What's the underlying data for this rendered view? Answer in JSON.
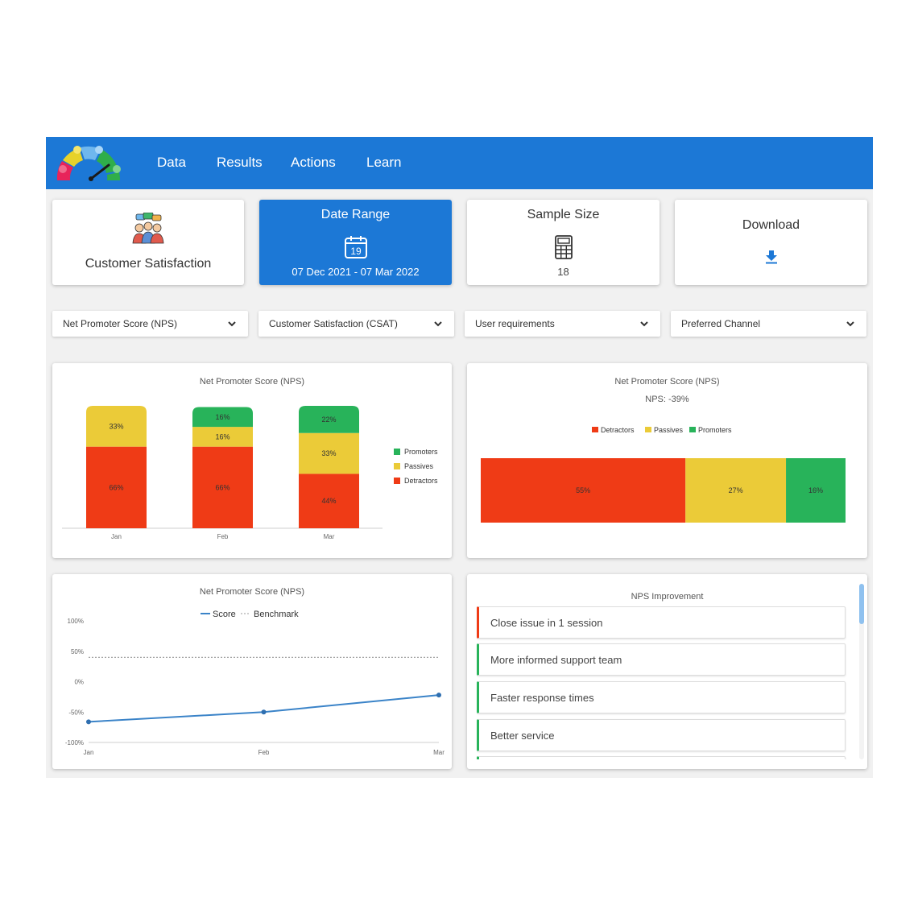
{
  "header": {
    "nav": [
      "Data",
      "Results",
      "Actions",
      "Learn"
    ],
    "colors": {
      "bar": "#1c78d6"
    }
  },
  "cards": {
    "customer": {
      "title": "Customer Satisfaction",
      "icon": "people-feedback-icon"
    },
    "date_range": {
      "title": "Date Range",
      "calendar_day": "19",
      "value": "07 Dec 2021 - 07 Mar 2022",
      "icon": "calendar-icon"
    },
    "sample_size": {
      "title": "Sample Size",
      "value": "18",
      "icon": "calculator-icon"
    },
    "download": {
      "title": "Download",
      "icon": "download-icon"
    }
  },
  "filters": [
    {
      "label": "Net Promoter Score (NPS)"
    },
    {
      "label": "Customer Satisfaction (CSAT)"
    },
    {
      "label": "User requirements"
    },
    {
      "label": "Preferred Channel"
    }
  ],
  "colors": {
    "detractors": "#ef3b16",
    "passives": "#ebcb38",
    "promoters": "#28b35a",
    "score_line": "#3a83c8",
    "benchmark": "#999999"
  },
  "chart_data": [
    {
      "type": "bar",
      "stacked": true,
      "title": "Net Promoter Score (NPS)",
      "categories": [
        "Jan",
        "Feb",
        "Mar"
      ],
      "series": [
        {
          "name": "Detractors",
          "values": [
            66,
            66,
            44
          ],
          "labels": [
            "66%",
            "66%",
            "44%"
          ]
        },
        {
          "name": "Passives",
          "values": [
            33,
            16,
            33
          ],
          "labels": [
            "33%",
            "16%",
            "33%"
          ]
        },
        {
          "name": "Promoters",
          "values": [
            0,
            16,
            22
          ],
          "labels": [
            "",
            "16%",
            "22%"
          ]
        }
      ],
      "legend": [
        "Promoters",
        "Passives",
        "Detractors"
      ],
      "legend_position": "right"
    },
    {
      "type": "bar",
      "stacked": true,
      "orientation": "horizontal",
      "title": "Net Promoter Score (NPS)",
      "subtitle": "NPS: -39%",
      "series": [
        {
          "name": "Detractors",
          "value": 55,
          "label": "55%"
        },
        {
          "name": "Passives",
          "value": 27,
          "label": "27%"
        },
        {
          "name": "Promoters",
          "value": 16,
          "label": "16%"
        }
      ],
      "legend": [
        "Detractors",
        "Passives",
        "Promoters"
      ],
      "legend_position": "top"
    },
    {
      "type": "line",
      "title": "Net Promoter Score (NPS)",
      "x": [
        "Jan",
        "Feb",
        "Mar"
      ],
      "series": [
        {
          "name": "Score",
          "values": [
            -66,
            -50,
            -22
          ]
        },
        {
          "name": "Benchmark",
          "values": [
            40,
            40,
            40
          ],
          "style": "dotted"
        }
      ],
      "y_ticks": [
        "100%",
        "50%",
        "0%",
        "-50%",
        "-100%"
      ],
      "ylim": [
        -100,
        100
      ],
      "legend_position": "top"
    }
  ],
  "improvement": {
    "title": "NPS Improvement",
    "items": [
      {
        "label": "Close issue in 1 session",
        "color": "#ef3b16"
      },
      {
        "label": "More informed support team",
        "color": "#28b35a"
      },
      {
        "label": "Faster response times",
        "color": "#28b35a"
      },
      {
        "label": "Better service",
        "color": "#28b35a"
      }
    ]
  }
}
